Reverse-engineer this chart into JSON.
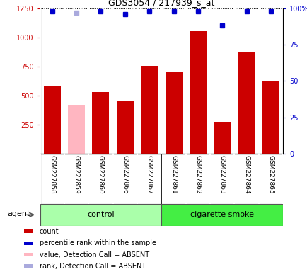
{
  "title": "GDS3054 / 217939_s_at",
  "samples": [
    "GSM227858",
    "GSM227859",
    "GSM227860",
    "GSM227866",
    "GSM227867",
    "GSM227861",
    "GSM227862",
    "GSM227863",
    "GSM227864",
    "GSM227865"
  ],
  "counts": [
    575,
    420,
    530,
    455,
    755,
    700,
    1050,
    275,
    870,
    620
  ],
  "absent": [
    false,
    true,
    false,
    false,
    false,
    false,
    false,
    false,
    false,
    false
  ],
  "percentile_ranks": [
    98,
    97,
    98,
    96,
    98,
    98,
    98,
    88,
    98,
    98
  ],
  "absent_rank": [
    false,
    true,
    false,
    false,
    false,
    false,
    false,
    false,
    false,
    false
  ],
  "groups": [
    "control",
    "control",
    "control",
    "control",
    "control",
    "cigarette smoke",
    "cigarette smoke",
    "cigarette smoke",
    "cigarette smoke",
    "cigarette smoke"
  ],
  "bar_color_present": "#CC0000",
  "bar_color_absent": "#FFB6C1",
  "dot_color_present": "#0000CC",
  "dot_color_absent": "#AAAADD",
  "ylim_left": [
    0,
    1250
  ],
  "ylim_right": [
    0,
    100
  ],
  "yticks_left": [
    250,
    500,
    750,
    1000,
    1250
  ],
  "yticks_right": [
    0,
    25,
    50,
    75,
    100
  ],
  "plot_bg_color": "#ffffff",
  "tick_area_bg": "#d0d0d0",
  "control_color": "#aaffaa",
  "smoke_color": "#44ee44",
  "legend_items": [
    {
      "label": "count",
      "color": "#CC0000"
    },
    {
      "label": "percentile rank within the sample",
      "color": "#0000CC"
    },
    {
      "label": "value, Detection Call = ABSENT",
      "color": "#FFB6C1"
    },
    {
      "label": "rank, Detection Call = ABSENT",
      "color": "#AAAADD"
    }
  ]
}
